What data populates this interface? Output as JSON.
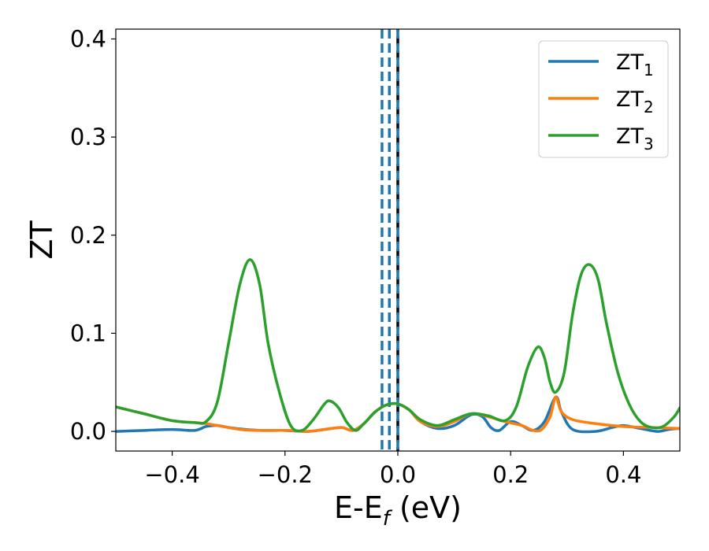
{
  "chart_data": {
    "type": "line",
    "xlabel": "E-E",
    "xlabel_sub": "f",
    "xlabel_unit": " (eV)",
    "ylabel": "ZT",
    "xlim": [
      -0.5,
      0.5
    ],
    "ylim": [
      -0.02,
      0.41
    ],
    "x_ticks": [
      -0.4,
      -0.2,
      0.0,
      0.2,
      0.4
    ],
    "x_tick_labels": [
      "−0.4",
      "−0.2",
      "0.0",
      "0.2",
      "0.4"
    ],
    "y_ticks": [
      0.0,
      0.1,
      0.2,
      0.3,
      0.4
    ],
    "y_tick_labels": [
      "0.0",
      "0.1",
      "0.2",
      "0.3",
      "0.4"
    ],
    "grid": false,
    "legend_position": "top-right",
    "vlines": [
      {
        "x": -0.028,
        "style": "dashed",
        "color": "#1f77b4"
      },
      {
        "x": -0.015,
        "style": "dashed",
        "color": "#1f77b4"
      },
      {
        "x": 0.0,
        "style": "dashed",
        "color": "#000000"
      },
      {
        "x": 0.0,
        "style": "dashed",
        "color": "#1f77b4"
      }
    ],
    "series": [
      {
        "name": "ZT",
        "name_sub": "1",
        "color": "#1f77b4",
        "points": [
          [
            -0.5,
            0.0
          ],
          [
            -0.45,
            0.001
          ],
          [
            -0.4,
            0.002
          ],
          [
            -0.36,
            0.001
          ],
          [
            -0.34,
            0.005
          ],
          [
            -0.32,
            0.006
          ],
          [
            -0.3,
            0.004
          ],
          [
            -0.27,
            0.002
          ],
          [
            -0.24,
            0.001
          ],
          [
            -0.2,
            0.001
          ],
          [
            -0.16,
            0.0
          ],
          [
            -0.13,
            0.002
          ],
          [
            -0.1,
            0.004
          ],
          [
            -0.08,
            0.001
          ],
          [
            -0.06,
            0.008
          ],
          [
            -0.04,
            0.02
          ],
          [
            -0.02,
            0.027
          ],
          [
            0.0,
            0.028
          ],
          [
            0.02,
            0.022
          ],
          [
            0.04,
            0.01
          ],
          [
            0.07,
            0.003
          ],
          [
            0.1,
            0.006
          ],
          [
            0.13,
            0.017
          ],
          [
            0.15,
            0.015
          ],
          [
            0.165,
            0.004
          ],
          [
            0.18,
            0.001
          ],
          [
            0.2,
            0.01
          ],
          [
            0.22,
            0.006
          ],
          [
            0.24,
            0.001
          ],
          [
            0.26,
            0.01
          ],
          [
            0.28,
            0.035
          ],
          [
            0.29,
            0.02
          ],
          [
            0.31,
            0.002
          ],
          [
            0.35,
            0.0
          ],
          [
            0.38,
            0.004
          ],
          [
            0.4,
            0.006
          ],
          [
            0.43,
            0.003
          ],
          [
            0.46,
            0.0
          ],
          [
            0.48,
            0.002
          ],
          [
            0.5,
            0.003
          ]
        ]
      },
      {
        "name": "ZT",
        "name_sub": "2",
        "color": "#ff7f0e",
        "points": [
          [
            -0.5,
            0.025
          ],
          [
            -0.45,
            0.018
          ],
          [
            -0.4,
            0.011
          ],
          [
            -0.36,
            0.009
          ],
          [
            -0.34,
            0.008
          ],
          [
            -0.31,
            0.005
          ],
          [
            -0.28,
            0.002
          ],
          [
            -0.25,
            0.001
          ],
          [
            -0.22,
            0.001
          ],
          [
            -0.19,
            0.001
          ],
          [
            -0.16,
            0.0
          ],
          [
            -0.13,
            0.002
          ],
          [
            -0.1,
            0.004
          ],
          [
            -0.08,
            0.001
          ],
          [
            -0.06,
            0.008
          ],
          [
            -0.04,
            0.02
          ],
          [
            -0.02,
            0.027
          ],
          [
            0.0,
            0.028
          ],
          [
            0.02,
            0.022
          ],
          [
            0.04,
            0.01
          ],
          [
            0.07,
            0.005
          ],
          [
            0.1,
            0.01
          ],
          [
            0.13,
            0.018
          ],
          [
            0.16,
            0.015
          ],
          [
            0.19,
            0.01
          ],
          [
            0.22,
            0.006
          ],
          [
            0.24,
            0.001
          ],
          [
            0.255,
            0.002
          ],
          [
            0.27,
            0.015
          ],
          [
            0.28,
            0.035
          ],
          [
            0.29,
            0.02
          ],
          [
            0.31,
            0.012
          ],
          [
            0.35,
            0.008
          ],
          [
            0.4,
            0.005
          ],
          [
            0.45,
            0.004
          ],
          [
            0.5,
            0.003
          ]
        ]
      },
      {
        "name": "ZT",
        "name_sub": "3",
        "color": "#2ca02c",
        "points": [
          [
            -0.5,
            0.025
          ],
          [
            -0.45,
            0.018
          ],
          [
            -0.4,
            0.011
          ],
          [
            -0.36,
            0.009
          ],
          [
            -0.34,
            0.01
          ],
          [
            -0.32,
            0.03
          ],
          [
            -0.3,
            0.09
          ],
          [
            -0.28,
            0.15
          ],
          [
            -0.262,
            0.175
          ],
          [
            -0.245,
            0.15
          ],
          [
            -0.23,
            0.09
          ],
          [
            -0.21,
            0.04
          ],
          [
            -0.19,
            0.006
          ],
          [
            -0.17,
            0.001
          ],
          [
            -0.15,
            0.012
          ],
          [
            -0.13,
            0.028
          ],
          [
            -0.12,
            0.031
          ],
          [
            -0.105,
            0.024
          ],
          [
            -0.09,
            0.009
          ],
          [
            -0.075,
            0.001
          ],
          [
            -0.06,
            0.008
          ],
          [
            -0.04,
            0.02
          ],
          [
            -0.02,
            0.027
          ],
          [
            0.0,
            0.028
          ],
          [
            0.02,
            0.022
          ],
          [
            0.04,
            0.012
          ],
          [
            0.07,
            0.006
          ],
          [
            0.1,
            0.012
          ],
          [
            0.13,
            0.018
          ],
          [
            0.16,
            0.016
          ],
          [
            0.19,
            0.011
          ],
          [
            0.21,
            0.025
          ],
          [
            0.23,
            0.065
          ],
          [
            0.248,
            0.086
          ],
          [
            0.26,
            0.075
          ],
          [
            0.27,
            0.05
          ],
          [
            0.28,
            0.04
          ],
          [
            0.295,
            0.06
          ],
          [
            0.31,
            0.12
          ],
          [
            0.325,
            0.16
          ],
          [
            0.34,
            0.17
          ],
          [
            0.355,
            0.155
          ],
          [
            0.37,
            0.11
          ],
          [
            0.39,
            0.06
          ],
          [
            0.41,
            0.028
          ],
          [
            0.43,
            0.01
          ],
          [
            0.45,
            0.004
          ],
          [
            0.47,
            0.005
          ],
          [
            0.49,
            0.015
          ],
          [
            0.5,
            0.024
          ]
        ]
      }
    ]
  }
}
